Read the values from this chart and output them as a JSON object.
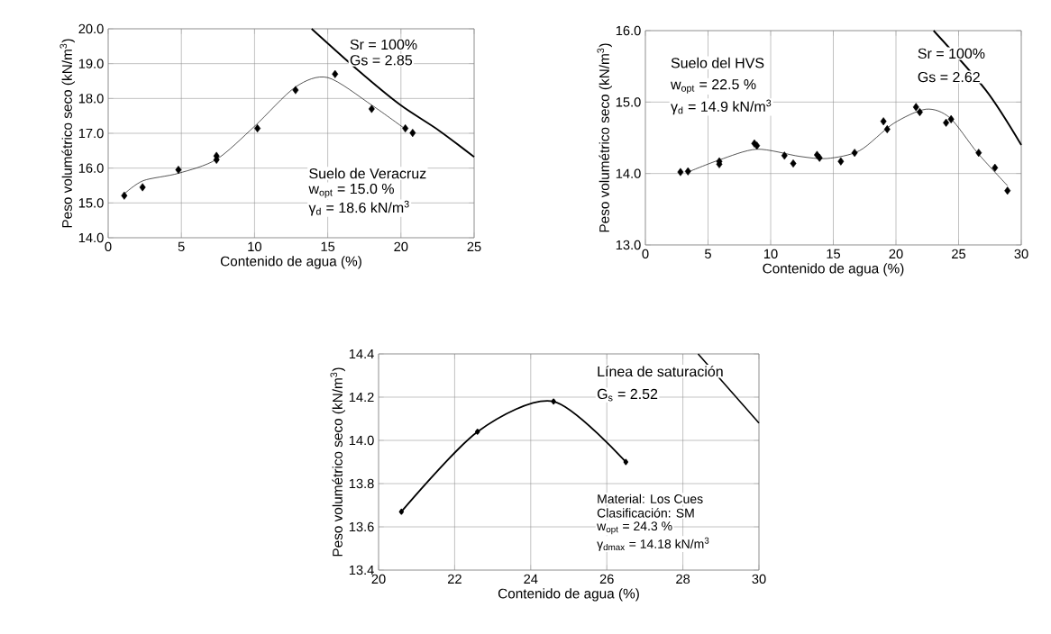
{
  "chart_data": [
    {
      "type": "scatter",
      "xlabel": "Contenido de agua (%)",
      "ylabel": "Peso volumétrico seco (kN/m$^{3}$)",
      "grid": true,
      "xlim": [
        0,
        25
      ],
      "ylim": [
        14,
        20
      ],
      "xticks": [
        0,
        5,
        10,
        15,
        20,
        25
      ],
      "yticks": [
        {
          "value": 14,
          "label": "14.0"
        },
        {
          "value": 15,
          "label": "15.0"
        },
        {
          "value": 16,
          "label": "16.0"
        },
        {
          "value": 17,
          "label": "17.0"
        },
        {
          "value": 18,
          "label": "18.0"
        },
        {
          "value": 19,
          "label": "19.0"
        },
        {
          "value": 20,
          "label": "20.0"
        }
      ],
      "series": [
        {
          "marker": "diamond",
          "color": "#000000",
          "x": [
            1.1,
            2.35,
            4.8,
            7.4,
            7.4,
            10.2,
            12.8,
            15.5,
            18.0,
            20.3,
            20.8
          ],
          "values": [
            15.21,
            15.45,
            15.95,
            16.35,
            16.24,
            17.14,
            18.24,
            18.7,
            17.7,
            17.14,
            17.01
          ]
        },
        {
          "type": "line",
          "marker": "none",
          "color": "#000000",
          "x": [
            1.1,
            2.4,
            4.8,
            7.4,
            10.0,
            12.8,
            15.0,
            18.0,
            20.3
          ],
          "values": [
            15.26,
            15.64,
            15.85,
            16.25,
            17.2,
            18.33,
            18.6,
            17.81,
            17.12
          ]
        },
        {
          "type": "line",
          "marker": "none",
          "color": "#000000",
          "x": [
            13.9,
            17.07,
            19.94,
            22.6,
            25.0
          ],
          "values": [
            20.0,
            18.81,
            17.82,
            17.08,
            16.32
          ]
        }
      ],
      "annotations": [
        "Sr = 100%",
        "Gs = 2.85",
        "Suelo de Veracruz",
        "w$_{opt}$ = 15.0 %",
        "γ$_{d}$ = 18.6 kN/m$^{3}$"
      ]
    },
    {
      "type": "scatter",
      "xlabel": "Contenido de agua (%)",
      "ylabel": "Peso volumétrico seco (kN/m$^{3}$)",
      "grid": true,
      "xlim": [
        0,
        30
      ],
      "ylim": [
        13,
        16
      ],
      "xticks": [
        0,
        5,
        10,
        15,
        20,
        25,
        30
      ],
      "yticks": [
        {
          "value": 13,
          "label": "13.0"
        },
        {
          "value": 14,
          "label": "14.0"
        },
        {
          "value": 15,
          "label": "15.0"
        },
        {
          "value": 16,
          "label": "16.0"
        }
      ],
      "series": [
        {
          "marker": "diamond",
          "color": "#000000",
          "x": [
            2.8,
            3.4,
            5.9,
            5.9,
            8.7,
            8.9,
            11.1,
            11.8,
            13.7,
            13.9,
            15.6,
            16.7,
            19.0,
            19.3,
            21.6,
            21.9,
            24.0,
            24.4,
            26.6,
            27.9,
            28.9
          ],
          "values": [
            14.02,
            14.03,
            14.17,
            14.13,
            14.42,
            14.39,
            14.25,
            14.14,
            14.26,
            14.22,
            14.17,
            14.29,
            14.73,
            14.62,
            14.93,
            14.86,
            14.71,
            14.76,
            14.29,
            14.08,
            13.76
          ]
        },
        {
          "type": "line",
          "marker": "none",
          "color": "#000000",
          "x": [
            3.4,
            5.9,
            8.9,
            12.3,
            14.5,
            17.1,
            19.8,
            22.4,
            24.3,
            26.5,
            28.9
          ],
          "values": [
            14.02,
            14.19,
            14.34,
            14.24,
            14.21,
            14.32,
            14.7,
            14.9,
            14.78,
            14.29,
            13.83
          ]
        },
        {
          "type": "line",
          "marker": "none",
          "color": "#000000",
          "x": [
            23.0,
            27.2,
            30.0
          ],
          "values": [
            16.0,
            15.16,
            14.4
          ]
        }
      ],
      "annotations": [
        "Suelo del HVS",
        "w$_{opt}$ = 22.5 %",
        "γ$_{d}$ = 14.9 kN/m$^{3}$",
        "Sr = 100%",
        "Gs = 2.62"
      ]
    },
    {
      "type": "line",
      "xlabel": "Contenido de agua (%)",
      "ylabel": "Peso volumétrico seco (kN/m$^{3}$)",
      "grid": true,
      "xlim": [
        20,
        30
      ],
      "ylim": [
        13.4,
        14.4
      ],
      "xticks": [
        20,
        22,
        24,
        26,
        28,
        30
      ],
      "yticks": [
        {
          "value": 13.4,
          "label": "13.4"
        },
        {
          "value": 13.6,
          "label": "13.6"
        },
        {
          "value": 13.8,
          "label": "13.8"
        },
        {
          "value": 14.0,
          "label": "14.0"
        },
        {
          "value": 14.2,
          "label": "14.2"
        },
        {
          "value": 14.4,
          "label": "14.4"
        }
      ],
      "series": [
        {
          "marker": "diamond",
          "color": "#000000",
          "x": [
            20.6,
            22.6,
            24.6,
            26.5
          ],
          "values": [
            13.67,
            14.04,
            14.18,
            13.9
          ]
        },
        {
          "marker": "none",
          "color": "#000000",
          "x": [
            28.4,
            30.0
          ],
          "values": [
            14.4,
            14.08
          ]
        }
      ],
      "annotations": [
        "Línea de saturación",
        "G$_{s}$ = 2.52",
        "Material:  Los Cues",
        "Clasificación: SM",
        "w$_{opt}$ = 24.3 %",
        "γ$_{dmax}$ = 14.18 kN/m$^{3}$"
      ]
    }
  ]
}
